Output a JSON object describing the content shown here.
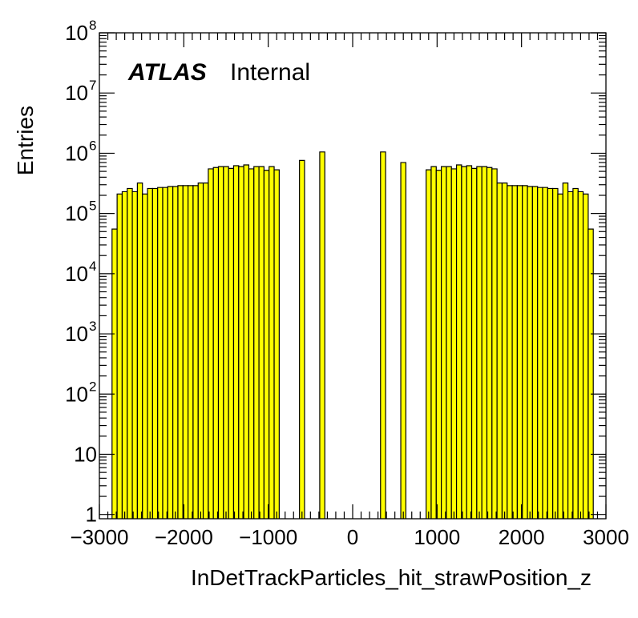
{
  "chart_data": {
    "type": "bar",
    "xlabel": "InDetTrackParticles_hit_strawPosition_z",
    "ylabel": "Entries",
    "xlim": [
      -3000,
      3000
    ],
    "ylim": [
      0.85,
      100000000
    ],
    "log_y": true,
    "bin_width": 60,
    "bar_color": "#ffff00",
    "outline_color": "#000000",
    "label": {
      "bold": "ATLAS",
      "normal": "Internal"
    },
    "x_ticks": [
      {
        "value": -3000,
        "label": "−3000"
      },
      {
        "value": -2000,
        "label": "−2000"
      },
      {
        "value": -1000,
        "label": "−1000"
      },
      {
        "value": 0,
        "label": "0"
      },
      {
        "value": 1000,
        "label": "1000"
      },
      {
        "value": 2000,
        "label": "2000"
      },
      {
        "value": 3000,
        "label": "3000"
      }
    ],
    "y_ticks": [
      {
        "value": 1,
        "base": "1",
        "exp": ""
      },
      {
        "value": 10,
        "base": "10",
        "exp": ""
      },
      {
        "value": 100,
        "base": "10",
        "exp": "2"
      },
      {
        "value": 1000,
        "base": "10",
        "exp": "3"
      },
      {
        "value": 10000,
        "base": "10",
        "exp": "4"
      },
      {
        "value": 100000,
        "base": "10",
        "exp": "5"
      },
      {
        "value": 1000000,
        "base": "10",
        "exp": "6"
      },
      {
        "value": 10000000,
        "base": "10",
        "exp": "7"
      },
      {
        "value": 100000000,
        "base": "10",
        "exp": "8"
      }
    ],
    "x": [
      -2820,
      -2760,
      -2700,
      -2640,
      -2580,
      -2520,
      -2460,
      -2400,
      -2340,
      -2280,
      -2220,
      -2160,
      -2100,
      -2040,
      -1980,
      -1920,
      -1860,
      -1800,
      -1740,
      -1680,
      -1620,
      -1560,
      -1500,
      -1440,
      -1380,
      -1320,
      -1260,
      -1200,
      -1140,
      -1080,
      -1020,
      -960,
      -900,
      -660,
      -600,
      -420,
      -360,
      -300,
      300,
      360,
      420,
      600,
      660,
      900,
      960,
      1020,
      1080,
      1140,
      1200,
      1260,
      1320,
      1380,
      1440,
      1500,
      1560,
      1620,
      1680,
      1740,
      1800,
      1860,
      1920,
      1980,
      2040,
      2100,
      2160,
      2220,
      2280,
      2340,
      2400,
      2460,
      2520,
      2580,
      2640,
      2700,
      2760,
      2820
    ],
    "values": [
      55000,
      210000,
      230000,
      260000,
      230000,
      320000,
      210000,
      260000,
      260000,
      270000,
      270000,
      280000,
      280000,
      290000,
      290000,
      290000,
      290000,
      320000,
      320000,
      550000,
      580000,
      600000,
      600000,
      560000,
      620000,
      600000,
      640000,
      550000,
      600000,
      600000,
      520000,
      600000,
      530000,
      0,
      760000,
      0,
      1050000,
      0,
      0,
      1050000,
      0,
      700000,
      0,
      530000,
      600000,
      520000,
      600000,
      600000,
      550000,
      640000,
      600000,
      620000,
      560000,
      600000,
      600000,
      580000,
      550000,
      320000,
      320000,
      290000,
      290000,
      290000,
      290000,
      280000,
      280000,
      270000,
      270000,
      260000,
      260000,
      210000,
      320000,
      230000,
      260000,
      230000,
      210000,
      55000
    ]
  }
}
